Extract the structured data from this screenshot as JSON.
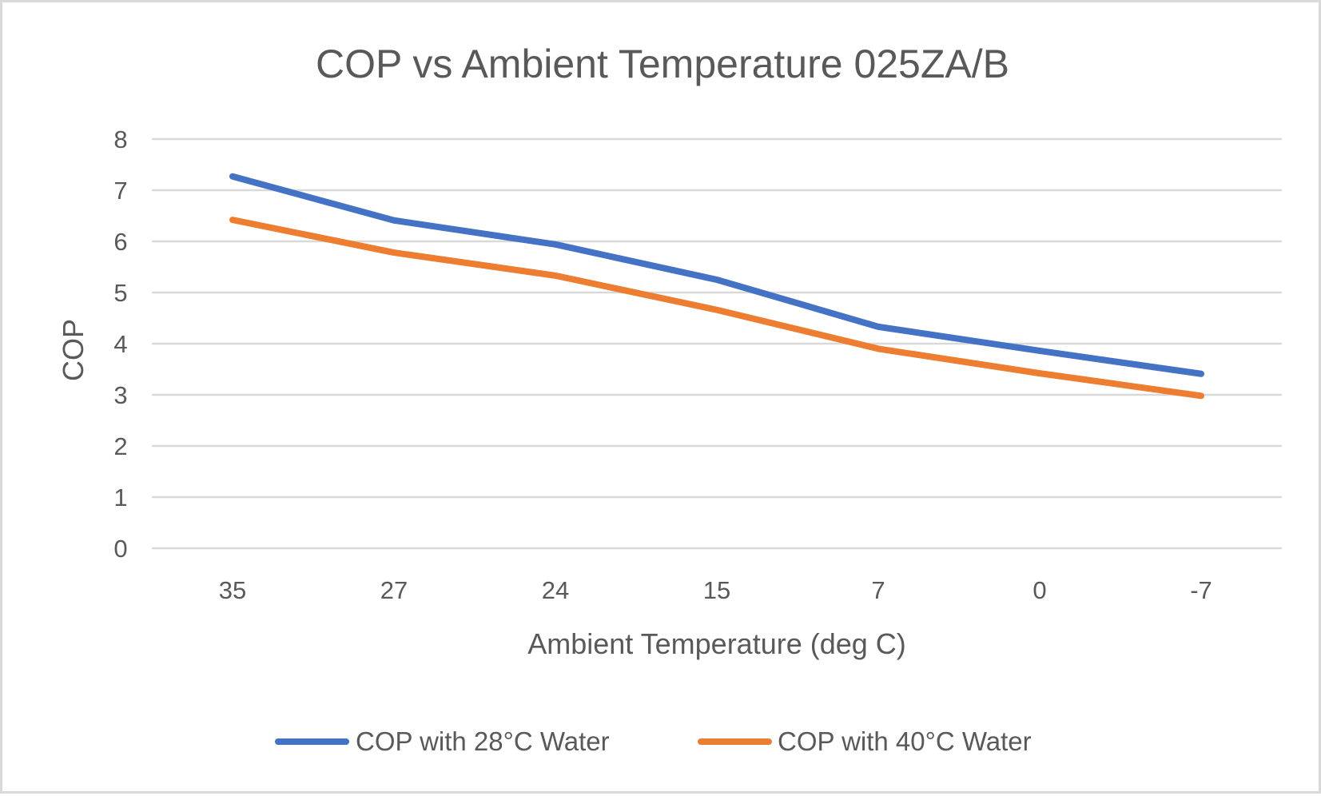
{
  "chart_data": {
    "type": "line",
    "title": "COP vs Ambient Temperature 025ZA/B",
    "xlabel": "Ambient Temperature (deg C)",
    "ylabel": "COP",
    "categories": [
      "35",
      "27",
      "24",
      "15",
      "7",
      "0",
      "-7"
    ],
    "ylim": [
      0,
      8
    ],
    "yticks": [
      "0",
      "1",
      "2",
      "3",
      "4",
      "5",
      "6",
      "7",
      "8"
    ],
    "grid": true,
    "legend_position": "bottom",
    "series": [
      {
        "name": "COP with 28°C Water",
        "color": "#4472c4",
        "values": [
          7.27,
          6.41,
          5.94,
          5.25,
          4.33,
          3.86,
          3.41
        ]
      },
      {
        "name": "COP with 40°C Water",
        "color": "#ed7d31",
        "values": [
          6.42,
          5.78,
          5.33,
          4.66,
          3.9,
          3.42,
          2.98
        ]
      }
    ]
  }
}
